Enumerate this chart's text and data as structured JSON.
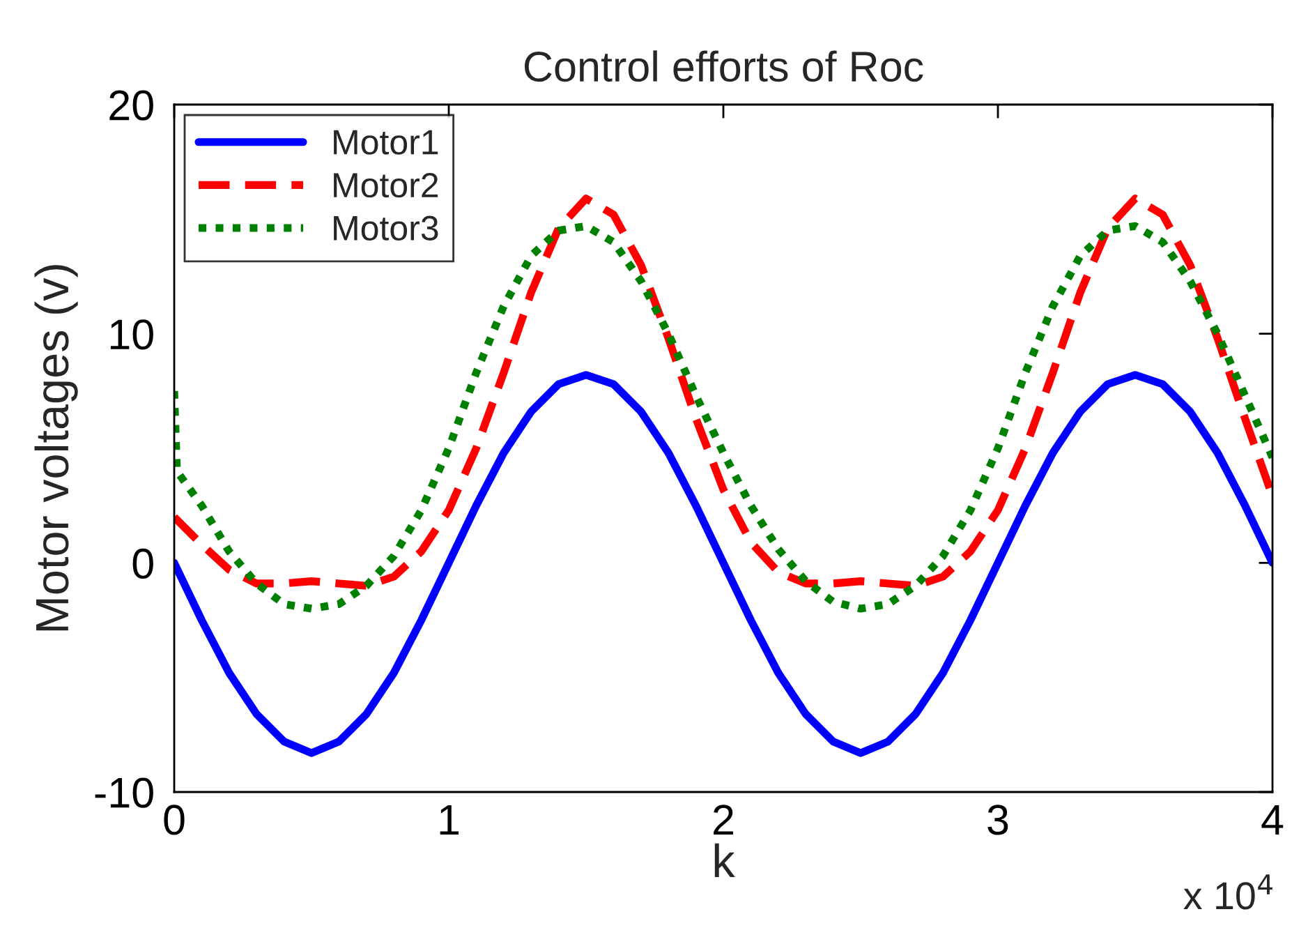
{
  "chart_data": {
    "type": "line",
    "title": "Control efforts of Roc",
    "xlabel": "k",
    "ylabel": "Motor voltages (v)",
    "x": [
      0,
      0.1,
      0.2,
      0.3,
      0.4,
      0.5,
      0.6,
      0.7,
      0.8,
      0.9,
      1.0,
      1.1,
      1.2,
      1.3,
      1.4,
      1.5,
      1.6,
      1.7,
      1.8,
      1.9,
      2.0,
      2.1,
      2.2,
      2.3,
      2.4,
      2.5,
      2.6,
      2.7,
      2.8,
      2.9,
      3.0,
      3.1,
      3.2,
      3.3,
      3.4,
      3.5,
      3.6,
      3.7,
      3.8,
      3.9,
      4.0
    ],
    "series": [
      {
        "name": "Motor1",
        "color": "#0000ff",
        "line_style": "solid",
        "values": [
          0,
          -2.5,
          -4.8,
          -6.6,
          -7.8,
          -8.3,
          -7.8,
          -6.6,
          -4.8,
          -2.5,
          0,
          2.5,
          4.8,
          6.6,
          7.8,
          8.2,
          7.8,
          6.6,
          4.8,
          2.5,
          0,
          -2.5,
          -4.8,
          -6.6,
          -7.8,
          -8.3,
          -7.8,
          -6.6,
          -4.8,
          -2.5,
          0,
          2.5,
          4.8,
          6.6,
          7.8,
          8.2,
          7.8,
          6.6,
          4.8,
          2.5,
          0
        ]
      },
      {
        "name": "Motor2",
        "color": "#ff0000",
        "line_style": "dashed",
        "values": [
          2.0,
          0.8,
          -0.3,
          -0.9,
          -0.9,
          -0.8,
          -0.9,
          -1.0,
          -0.6,
          0.5,
          2.3,
          5.0,
          8.3,
          11.8,
          14.6,
          15.9,
          15.2,
          13.0,
          9.8,
          6.3,
          3.2,
          0.9,
          -0.4,
          -0.9,
          -0.9,
          -0.8,
          -0.9,
          -1.0,
          -0.6,
          0.5,
          2.3,
          5.0,
          8.3,
          11.8,
          14.6,
          15.9,
          15.2,
          13.0,
          9.8,
          6.3,
          2.9
        ]
      },
      {
        "name": "Motor3",
        "color": "#008000",
        "line_style": "dotted",
        "x": [
          0,
          0.01,
          0.1,
          0.2,
          0.3,
          0.4,
          0.5,
          0.6,
          0.7,
          0.8,
          0.9,
          1.0,
          1.1,
          1.2,
          1.3,
          1.4,
          1.5,
          1.6,
          1.7,
          1.8,
          1.9,
          2.0,
          2.1,
          2.2,
          2.3,
          2.4,
          2.5,
          2.6,
          2.7,
          2.8,
          2.9,
          3.0,
          3.1,
          3.2,
          3.3,
          3.4,
          3.5,
          3.6,
          3.7,
          3.8,
          3.9,
          4.0
        ],
        "values": [
          7.5,
          4.0,
          2.5,
          0.5,
          -0.9,
          -1.8,
          -2.0,
          -1.8,
          -1.0,
          0.3,
          2.3,
          5.0,
          8.3,
          11.2,
          13.4,
          14.5,
          14.7,
          14.0,
          12.3,
          10.0,
          7.3,
          4.8,
          2.5,
          0.6,
          -0.8,
          -1.7,
          -2.0,
          -1.8,
          -1.0,
          0.3,
          2.3,
          5.0,
          8.3,
          11.2,
          13.4,
          14.5,
          14.7,
          14.0,
          12.3,
          10.0,
          7.3,
          4.6
        ]
      }
    ],
    "xlim": [
      0,
      4
    ],
    "xticks": [
      0,
      1,
      2,
      3,
      4
    ],
    "ylim": [
      -10,
      20
    ],
    "yticks": [
      -10,
      0,
      10,
      20
    ],
    "annotations": [
      "x 10$^{4}$"
    ],
    "legend": "top left",
    "grid": false
  }
}
